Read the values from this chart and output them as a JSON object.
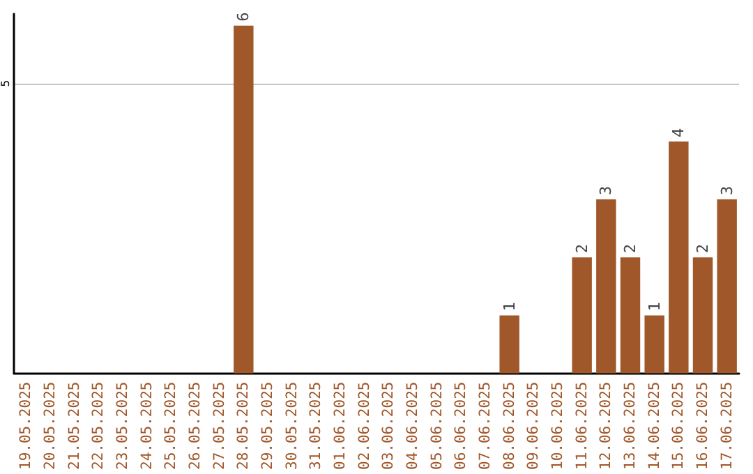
{
  "chart_data": {
    "type": "bar",
    "categories": [
      "19.05.2025",
      "20.05.2025",
      "21.05.2025",
      "22.05.2025",
      "23.05.2025",
      "24.05.2025",
      "25.05.2025",
      "26.05.2025",
      "27.05.2025",
      "28.05.2025",
      "29.05.2025",
      "30.05.2025",
      "31.05.2025",
      "01.06.2025",
      "02.06.2025",
      "03.06.2025",
      "04.06.2025",
      "05.06.2025",
      "06.06.2025",
      "07.06.2025",
      "08.06.2025",
      "09.06.2025",
      "10.06.2025",
      "11.06.2025",
      "12.06.2025",
      "13.06.2025",
      "14.06.2025",
      "15.06.2025",
      "16.06.2025",
      "17.06.2025"
    ],
    "values": [
      0,
      0,
      0,
      0,
      0,
      0,
      0,
      0,
      0,
      6,
      0,
      0,
      0,
      0,
      0,
      0,
      0,
      0,
      0,
      0,
      1,
      0,
      0,
      2,
      3,
      2,
      1,
      4,
      2,
      3
    ],
    "value_labels": [
      null,
      null,
      null,
      null,
      null,
      null,
      null,
      null,
      null,
      "6",
      null,
      null,
      null,
      null,
      null,
      null,
      null,
      null,
      null,
      null,
      "1",
      null,
      null,
      "2",
      "3",
      "2",
      "1",
      "4",
      "2",
      "3"
    ],
    "color": "#a0572a",
    "ylim": [
      0,
      6.2
    ],
    "yticks": [
      5
    ],
    "grid": "y"
  }
}
